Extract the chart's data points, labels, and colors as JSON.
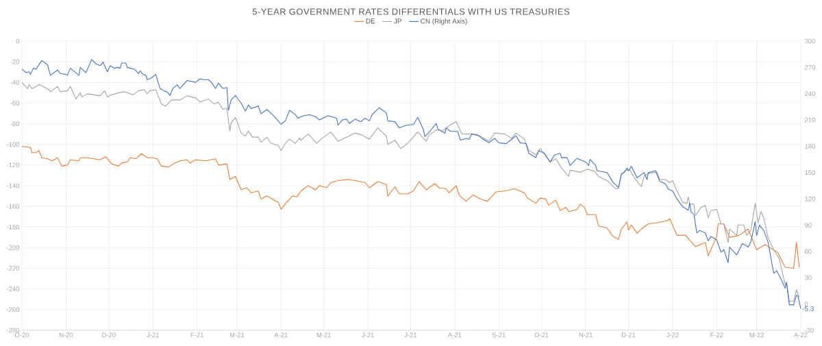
{
  "chart_data": {
    "type": "line",
    "title": "5-YEAR GOVERNMENT RATES DIFFERENTIALS WITH US TREASURIES",
    "legend": "top",
    "grid": true,
    "xlim": [
      "2020-10-01",
      "2022-04-01"
    ],
    "xticks": [
      {
        "value": "2020-10-01",
        "label": "O-20"
      },
      {
        "value": "2020-11-01",
        "label": "N-20"
      },
      {
        "value": "2020-12-01",
        "label": "D-20"
      },
      {
        "value": "2021-01-01",
        "label": "J-21"
      },
      {
        "value": "2021-02-01",
        "label": "F-21"
      },
      {
        "value": "2021-03-01",
        "label": "M-21"
      },
      {
        "value": "2021-04-01",
        "label": "A-21"
      },
      {
        "value": "2021-05-01",
        "label": "M-21"
      },
      {
        "value": "2021-06-01",
        "label": "J-21"
      },
      {
        "value": "2021-07-01",
        "label": "J-21"
      },
      {
        "value": "2021-08-01",
        "label": "A-21"
      },
      {
        "value": "2021-09-01",
        "label": "S-21"
      },
      {
        "value": "2021-10-01",
        "label": "O-21"
      },
      {
        "value": "2021-11-01",
        "label": "N-21"
      },
      {
        "value": "2021-12-01",
        "label": "D-21"
      },
      {
        "value": "2022-01-01",
        "label": "J-22"
      },
      {
        "value": "2022-02-01",
        "label": "F-22"
      },
      {
        "value": "2022-03-01",
        "label": "M-22"
      },
      {
        "value": "2022-04-01",
        "label": "A-22"
      }
    ],
    "ylim": [
      -280,
      0
    ],
    "yticks": [
      -280,
      -260,
      -240,
      -220,
      -200,
      -180,
      -160,
      -140,
      -120,
      -100,
      -80,
      -60,
      -40,
      -20,
      0
    ],
    "y2lim": [
      -30,
      300
    ],
    "y2ticks": [
      -30,
      0,
      30,
      60,
      90,
      120,
      150,
      180,
      210,
      240,
      270,
      300
    ],
    "series": [
      {
        "name": "DE",
        "color": "#ed7d31",
        "x": [
          "2020-10-01",
          "2020-10-07",
          "2020-10-08",
          "2020-10-11",
          "2020-10-13",
          "2020-10-15",
          "2020-10-19",
          "2020-10-22",
          "2020-10-26",
          "2020-10-29",
          "2020-11-02",
          "2020-11-04",
          "2020-11-10",
          "2020-11-11",
          "2020-11-16",
          "2020-11-25",
          "2020-11-29",
          "2020-12-03",
          "2020-12-08",
          "2020-12-10",
          "2020-12-14",
          "2020-12-16",
          "2020-12-20",
          "2020-12-24",
          "2020-12-28",
          "2021-01-01",
          "2021-01-04",
          "2021-01-07",
          "2021-01-12",
          "2021-01-15",
          "2021-01-20",
          "2021-01-25",
          "2021-01-27",
          "2021-01-31",
          "2021-02-07",
          "2021-02-14",
          "2021-02-16",
          "2021-02-22",
          "2021-02-24",
          "2021-02-28",
          "2021-03-04",
          "2021-03-08",
          "2021-03-11",
          "2021-03-16",
          "2021-03-18",
          "2021-03-22",
          "2021-03-27",
          "2021-03-30",
          "2021-04-01",
          "2021-04-05",
          "2021-04-09",
          "2021-04-12",
          "2021-04-15",
          "2021-04-20",
          "2021-04-25",
          "2021-04-28",
          "2021-05-03",
          "2021-05-06",
          "2021-05-11",
          "2021-05-18",
          "2021-05-23",
          "2021-05-30",
          "2021-06-02",
          "2021-06-08",
          "2021-06-14",
          "2021-06-15",
          "2021-06-20",
          "2021-06-23",
          "2021-06-29",
          "2021-07-03",
          "2021-07-07",
          "2021-07-12",
          "2021-07-18",
          "2021-07-21",
          "2021-07-26",
          "2021-07-28",
          "2021-08-02",
          "2021-08-04",
          "2021-08-09",
          "2021-08-14",
          "2021-08-19",
          "2021-08-24",
          "2021-08-30",
          "2021-09-06",
          "2021-09-12",
          "2021-09-19",
          "2021-09-21",
          "2021-09-27",
          "2021-09-30",
          "2021-10-04",
          "2021-10-06",
          "2021-10-11",
          "2021-10-14",
          "2021-10-18",
          "2021-10-20",
          "2021-10-26",
          "2021-10-28",
          "2021-10-31",
          "2021-11-02",
          "2021-11-08",
          "2021-11-10",
          "2021-11-16",
          "2021-11-20",
          "2021-11-24",
          "2021-11-26",
          "2021-11-30",
          "2021-12-01",
          "2021-12-03",
          "2021-12-07",
          "2021-12-10",
          "2021-12-15",
          "2021-12-21",
          "2021-12-28",
          "2021-12-30",
          "2022-01-04",
          "2022-01-10",
          "2022-01-17",
          "2022-01-24",
          "2022-01-26",
          "2022-02-01",
          "2022-02-02",
          "2022-02-06",
          "2022-02-10",
          "2022-02-17",
          "2022-02-23",
          "2022-03-01",
          "2022-03-07",
          "2022-03-16",
          "2022-03-21",
          "2022-03-27",
          "2022-03-29",
          "2022-03-31"
        ],
        "values": [
          -102,
          -103,
          -108,
          -108,
          -106,
          -113,
          -114,
          -116,
          -113,
          -121,
          -120,
          -115,
          -116,
          -113,
          -113,
          -115,
          -112,
          -119,
          -121,
          -118,
          -117,
          -113,
          -114,
          -109,
          -113,
          -113,
          -114,
          -121,
          -122,
          -119,
          -116,
          -115,
          -118,
          -115,
          -116,
          -114,
          -120,
          -119,
          -134,
          -131,
          -144,
          -142,
          -147,
          -145,
          -153,
          -150,
          -154,
          -156,
          -163,
          -156,
          -150,
          -151,
          -145,
          -140,
          -144,
          -140,
          -142,
          -137,
          -135,
          -134,
          -135,
          -137,
          -142,
          -136,
          -139,
          -150,
          -141,
          -148,
          -148,
          -145,
          -136,
          -144,
          -138,
          -142,
          -143,
          -147,
          -140,
          -149,
          -155,
          -149,
          -153,
          -155,
          -146,
          -145,
          -143,
          -147,
          -152,
          -157,
          -152,
          -153,
          -159,
          -154,
          -164,
          -161,
          -165,
          -163,
          -158,
          -161,
          -168,
          -168,
          -179,
          -181,
          -189,
          -192,
          -182,
          -175,
          -183,
          -178,
          -186,
          -182,
          -177,
          -176,
          -174,
          -172,
          -188,
          -188,
          -199,
          -195,
          -208,
          -189,
          -177,
          -177,
          -190,
          -188,
          -182,
          -202,
          -197,
          -205,
          -219,
          -220,
          -195,
          -219
        ]
      },
      {
        "name": "JP",
        "color": "#a5a5a5",
        "x": [
          "2020-10-01",
          "2020-10-05",
          "2020-10-06",
          "2020-10-08",
          "2020-10-11",
          "2020-10-13",
          "2020-10-20",
          "2020-10-21",
          "2020-10-26",
          "2020-10-28",
          "2020-11-02",
          "2020-11-04",
          "2020-11-08",
          "2020-11-11",
          "2020-11-12",
          "2020-11-16",
          "2020-11-25",
          "2020-11-28",
          "2020-11-30",
          "2020-12-03",
          "2020-12-08",
          "2020-12-12",
          "2020-12-18",
          "2020-12-22",
          "2020-12-26",
          "2020-12-28",
          "2020-12-30",
          "2021-01-03",
          "2021-01-07",
          "2021-01-10",
          "2021-01-14",
          "2021-01-20",
          "2021-01-25",
          "2021-01-31",
          "2021-02-03",
          "2021-02-09",
          "2021-02-13",
          "2021-02-16",
          "2021-02-19",
          "2021-02-22",
          "2021-02-24",
          "2021-02-25",
          "2021-02-28",
          "2021-03-04",
          "2021-03-07",
          "2021-03-09",
          "2021-03-12",
          "2021-03-16",
          "2021-03-18",
          "2021-03-22",
          "2021-03-25",
          "2021-03-30",
          "2021-04-01",
          "2021-04-04",
          "2021-04-07",
          "2021-04-11",
          "2021-04-14",
          "2021-04-15",
          "2021-04-20",
          "2021-04-26",
          "2021-04-29",
          "2021-05-06",
          "2021-05-11",
          "2021-05-17",
          "2021-05-23",
          "2021-05-28",
          "2021-06-02",
          "2021-06-08",
          "2021-06-14",
          "2021-06-15",
          "2021-06-20",
          "2021-06-24",
          "2021-06-29",
          "2021-07-06",
          "2021-07-12",
          "2021-07-14",
          "2021-07-19",
          "2021-07-23",
          "2021-07-28",
          "2021-08-02",
          "2021-08-06",
          "2021-08-12",
          "2021-08-19",
          "2021-08-25",
          "2021-08-29",
          "2021-09-05",
          "2021-09-10",
          "2021-09-13",
          "2021-09-19",
          "2021-09-22",
          "2021-09-27",
          "2021-09-30",
          "2021-10-07",
          "2021-10-11",
          "2021-10-15",
          "2021-10-20",
          "2021-10-21",
          "2021-10-28",
          "2021-11-02",
          "2021-11-07",
          "2021-11-10",
          "2021-11-16",
          "2021-11-22",
          "2021-11-24",
          "2021-11-26",
          "2021-11-29",
          "2021-12-02",
          "2021-12-06",
          "2021-12-10",
          "2021-12-12",
          "2021-12-15",
          "2021-12-21",
          "2021-12-23",
          "2021-12-27",
          "2021-12-30",
          "2022-01-01",
          "2022-01-04",
          "2022-01-08",
          "2022-01-11",
          "2022-01-12",
          "2022-01-13",
          "2022-01-16",
          "2022-01-17",
          "2022-01-21",
          "2022-01-24",
          "2022-01-26",
          "2022-01-28",
          "2022-02-01",
          "2022-02-04",
          "2022-02-06",
          "2022-02-09",
          "2022-02-10",
          "2022-02-15",
          "2022-02-16",
          "2022-02-20",
          "2022-02-22",
          "2022-02-25",
          "2022-02-28",
          "2022-03-02",
          "2022-03-04",
          "2022-03-06",
          "2022-03-09",
          "2022-03-13",
          "2022-03-17",
          "2022-03-21",
          "2022-03-22",
          "2022-03-24",
          "2022-03-27",
          "2022-03-29",
          "2022-03-31"
        ],
        "values": [
          -40,
          -46,
          -42,
          -46,
          -44,
          -42,
          -47,
          -49,
          -44,
          -49,
          -48,
          -44,
          -56,
          -50,
          -54,
          -51,
          -53,
          -48,
          -54,
          -52,
          -50,
          -49,
          -52,
          -48,
          -47,
          -51,
          -48,
          -47,
          -61,
          -63,
          -57,
          -57,
          -53,
          -55,
          -59,
          -56,
          -61,
          -59,
          -66,
          -65,
          -87,
          -79,
          -74,
          -89,
          -92,
          -87,
          -93,
          -93,
          -98,
          -93,
          -99,
          -101,
          -106,
          -99,
          -95,
          -99,
          -94,
          -96,
          -90,
          -99,
          -95,
          -88,
          -97,
          -93,
          -89,
          -91,
          -95,
          -84,
          -92,
          -100,
          -96,
          -104,
          -99,
          -88,
          -97,
          -91,
          -86,
          -87,
          -82,
          -78,
          -90,
          -90,
          -92,
          -97,
          -89,
          -90,
          -94,
          -89,
          -95,
          -106,
          -110,
          -104,
          -117,
          -114,
          -123,
          -131,
          -125,
          -127,
          -124,
          -126,
          -131,
          -135,
          -143,
          -143,
          -129,
          -125,
          -125,
          -134,
          -141,
          -131,
          -128,
          -127,
          -134,
          -134,
          -137,
          -135,
          -145,
          -156,
          -157,
          -151,
          -158,
          -158,
          -169,
          -161,
          -159,
          -171,
          -164,
          -163,
          -177,
          -177,
          -195,
          -182,
          -188,
          -178,
          -178,
          -188,
          -183,
          -157,
          -176,
          -165,
          -171,
          -190,
          -202,
          -211,
          -236,
          -233,
          -252,
          -252,
          -241,
          -248
        ]
      },
      {
        "name": "CN (Right Axis)",
        "color": "#4472c4",
        "axis": "y2",
        "x": [
          "2020-10-01",
          "2020-10-04",
          "2020-10-06",
          "2020-10-07",
          "2020-10-09",
          "2020-10-11",
          "2020-10-15",
          "2020-10-19",
          "2020-10-21",
          "2020-10-26",
          "2020-10-28",
          "2020-11-01",
          "2020-11-02",
          "2020-11-04",
          "2020-11-10",
          "2020-11-11",
          "2020-11-15",
          "2020-11-19",
          "2020-11-22",
          "2020-11-25",
          "2020-11-27",
          "2020-11-30",
          "2020-12-02",
          "2020-12-05",
          "2020-12-07",
          "2020-12-09",
          "2020-12-10",
          "2020-12-13",
          "2020-12-14",
          "2020-12-19",
          "2020-12-22",
          "2020-12-23",
          "2020-12-25",
          "2020-12-27",
          "2020-12-28",
          "2020-12-31",
          "2021-01-03",
          "2021-01-06",
          "2021-01-09",
          "2021-01-11",
          "2021-01-13",
          "2021-01-15",
          "2021-01-18",
          "2021-01-20",
          "2021-01-25",
          "2021-01-31",
          "2021-02-03",
          "2021-02-05",
          "2021-02-09",
          "2021-02-11",
          "2021-02-14",
          "2021-02-16",
          "2021-02-19",
          "2021-02-22",
          "2021-02-23",
          "2021-02-25",
          "2021-02-28",
          "2021-03-04",
          "2021-03-07",
          "2021-03-09",
          "2021-03-11",
          "2021-03-16",
          "2021-03-18",
          "2021-03-22",
          "2021-03-26",
          "2021-03-30",
          "2021-04-01",
          "2021-04-04",
          "2021-04-07",
          "2021-04-11",
          "2021-04-13",
          "2021-04-17",
          "2021-04-21",
          "2021-04-25",
          "2021-04-28",
          "2021-05-04",
          "2021-05-10",
          "2021-05-11",
          "2021-05-14",
          "2021-05-17",
          "2021-05-19",
          "2021-05-23",
          "2021-05-27",
          "2021-05-30",
          "2021-06-02",
          "2021-06-04",
          "2021-06-09",
          "2021-06-14",
          "2021-06-15",
          "2021-06-20",
          "2021-06-23",
          "2021-06-28",
          "2021-07-03",
          "2021-07-06",
          "2021-07-10",
          "2021-07-11",
          "2021-07-14",
          "2021-07-19",
          "2021-07-20",
          "2021-07-25",
          "2021-07-26",
          "2021-07-29",
          "2021-08-03",
          "2021-08-05",
          "2021-08-09",
          "2021-08-11",
          "2021-08-13",
          "2021-08-17",
          "2021-08-20",
          "2021-08-25",
          "2021-08-29",
          "2021-09-01",
          "2021-09-06",
          "2021-09-10",
          "2021-09-13",
          "2021-09-16",
          "2021-09-20",
          "2021-09-22",
          "2021-09-27",
          "2021-09-29",
          "2021-10-03",
          "2021-10-07",
          "2021-10-10",
          "2021-10-14",
          "2021-10-15",
          "2021-10-19",
          "2021-10-21",
          "2021-10-25",
          "2021-10-26",
          "2021-11-01",
          "2021-11-03",
          "2021-11-04",
          "2021-11-08",
          "2021-11-09",
          "2021-11-16",
          "2021-11-20",
          "2021-11-24",
          "2021-11-26",
          "2021-11-28",
          "2021-11-30",
          "2021-12-01",
          "2021-12-03",
          "2021-12-07",
          "2021-12-12",
          "2021-12-14",
          "2021-12-15",
          "2021-12-20",
          "2021-12-23",
          "2021-12-27",
          "2021-12-29",
          "2022-01-01",
          "2022-01-04",
          "2022-01-08",
          "2022-01-12",
          "2022-01-13",
          "2022-01-14",
          "2022-01-16",
          "2022-01-18",
          "2022-01-20",
          "2022-01-24",
          "2022-01-26",
          "2022-01-28",
          "2022-02-01",
          "2022-02-04",
          "2022-02-06",
          "2022-02-09",
          "2022-02-10",
          "2022-02-15",
          "2022-02-19",
          "2022-02-23",
          "2022-02-25",
          "2022-02-28",
          "2022-03-01",
          "2022-03-03",
          "2022-03-06",
          "2022-03-09",
          "2022-03-13",
          "2022-03-15",
          "2022-03-18",
          "2022-03-21",
          "2022-03-22",
          "2022-03-24",
          "2022-03-27",
          "2022-03-29",
          "2022-03-30",
          "2022-04-01"
        ],
        "values": [
          268,
          264,
          265,
          262,
          269,
          268,
          278,
          273,
          261,
          267,
          263,
          262,
          261,
          269,
          261,
          270,
          264,
          279,
          274,
          272,
          276,
          265,
          272,
          269,
          270,
          269,
          275,
          275,
          270,
          268,
          263,
          266,
          262,
          261,
          256,
          258,
          262,
          246,
          243,
          242,
          238,
          246,
          250,
          246,
          255,
          253,
          257,
          256,
          256,
          253,
          246,
          252,
          246,
          247,
          221,
          233,
          238,
          229,
          220,
          227,
          223,
          226,
          217,
          222,
          216,
          209,
          205,
          209,
          221,
          216,
          212,
          215,
          216,
          214,
          210,
          215,
          212,
          204,
          210,
          211,
          206,
          211,
          208,
          212,
          209,
          216,
          224,
          218,
          209,
          208,
          201,
          204,
          205,
          213,
          199,
          191,
          196,
          206,
          200,
          195,
          201,
          197,
          197,
          187,
          189,
          188,
          194,
          193,
          189,
          184,
          189,
          184,
          183,
          188,
          192,
          184,
          183,
          172,
          167,
          175,
          172,
          162,
          170,
          172,
          167,
          167,
          158,
          165,
          166,
          162,
          158,
          165,
          158,
          152,
          150,
          139,
          133,
          148,
          150,
          155,
          152,
          157,
          144,
          150,
          142,
          150,
          152,
          140,
          137,
          131,
          129,
          120,
          111,
          107,
          115,
          105,
          102,
          81,
          84,
          81,
          72,
          77,
          73,
          59,
          62,
          47,
          65,
          56,
          69,
          65,
          71,
          94,
          78,
          90,
          84,
          71,
          35,
          38,
          29,
          18,
          24,
          -1,
          -1,
          10,
          9,
          -5.3
        ],
        "value_labels": [
          null,
          null,
          null,
          null,
          null,
          null,
          null,
          null,
          null,
          null,
          null,
          null,
          null,
          null,
          null,
          null,
          null,
          null,
          null,
          null,
          null,
          null,
          null,
          null,
          null,
          null,
          null,
          null,
          null,
          null,
          null,
          null,
          null,
          null,
          null,
          null,
          null,
          null,
          null,
          null,
          null,
          null,
          null,
          null,
          null,
          null,
          null,
          null,
          null,
          null,
          null,
          null,
          null,
          null,
          null,
          null,
          null,
          null,
          null,
          null,
          null,
          null,
          null,
          null,
          null,
          null,
          null,
          null,
          null,
          null,
          null,
          null,
          null,
          null,
          null,
          null,
          null,
          null,
          null,
          null,
          null,
          null,
          null,
          null,
          null,
          null,
          null,
          null,
          null,
          null,
          null,
          null,
          null,
          null,
          null,
          null,
          null,
          null,
          null,
          null,
          null,
          null,
          null,
          null,
          null,
          null,
          null,
          null,
          null,
          null,
          null,
          null,
          null,
          null,
          null,
          null,
          null,
          null,
          null,
          null,
          null,
          null,
          null,
          null,
          null,
          null,
          null,
          null,
          null,
          null,
          null,
          null,
          null,
          null,
          null,
          null,
          null,
          null,
          null,
          null,
          null,
          null,
          null,
          null,
          null,
          null,
          null,
          null,
          null,
          null,
          null,
          null,
          null,
          null,
          null,
          null,
          null,
          null,
          null,
          null,
          null,
          null,
          null,
          null,
          null,
          null,
          null,
          null,
          null,
          null,
          null,
          null,
          null,
          null,
          null,
          null,
          null,
          null,
          null,
          null,
          null,
          null,
          null,
          null,
          null,
          "-5.3"
        ]
      }
    ]
  }
}
